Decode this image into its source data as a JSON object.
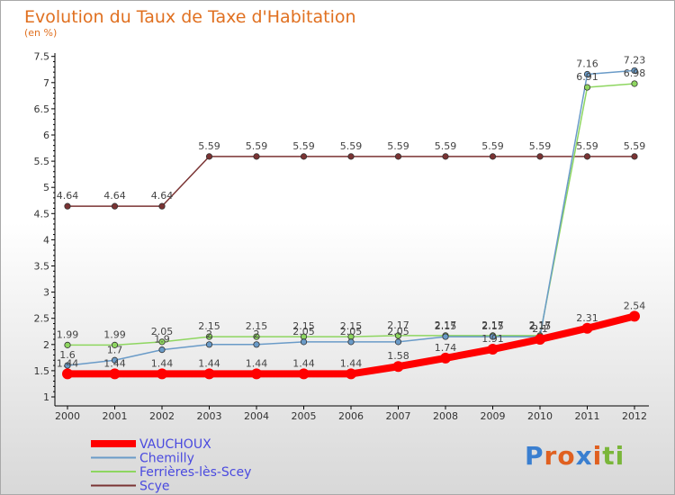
{
  "chart_data": {
    "type": "line",
    "title": "Evolution du Taux de Taxe d'Habitation",
    "subtitle": "(en %)",
    "x": [
      "2000",
      "2001",
      "2002",
      "2003",
      "2004",
      "2005",
      "2006",
      "2007",
      "2008",
      "2009",
      "2010",
      "2011",
      "2012"
    ],
    "ylim": [
      1,
      7.5
    ],
    "yticks": [
      "1",
      "1.5",
      "2",
      "2.5",
      "3",
      "3.5",
      "4",
      "4.5",
      "5",
      "5.5",
      "6",
      "6.5",
      "7",
      "7.5"
    ],
    "grid": false,
    "legend": "bottom-left",
    "series": [
      {
        "name": "VAUCHOUX",
        "color": "#ff0000",
        "values": [
          1.44,
          1.44,
          1.44,
          1.44,
          1.44,
          1.44,
          1.44,
          1.58,
          1.74,
          1.91,
          2.1,
          2.31,
          2.54
        ],
        "labels": [
          "1.44",
          "1.44",
          "1.44",
          "1.44",
          "1.44",
          "1.44",
          "1.44",
          "1.58",
          "1.74",
          "1.91",
          "2.1",
          "2.31",
          "2.54"
        ]
      },
      {
        "name": "Chemilly",
        "color": "#6a9bc8",
        "values": [
          1.6,
          1.7,
          1.9,
          2.0,
          2.0,
          2.05,
          2.05,
          2.05,
          2.15,
          2.15,
          2.15,
          7.16,
          7.23
        ],
        "labels": [
          "1.6",
          "1.7",
          "1.9",
          "2",
          "2",
          "2.05",
          "2.05",
          "2.05",
          "2.15",
          "2.15",
          "2.15",
          "7.16",
          "7.23"
        ]
      },
      {
        "name": "Ferrières-lès-Scey",
        "color": "#8ed660",
        "values": [
          1.99,
          1.99,
          2.05,
          2.15,
          2.15,
          2.15,
          2.15,
          2.17,
          2.17,
          2.17,
          2.17,
          6.91,
          6.98
        ],
        "labels": [
          "1.99",
          "1.99",
          "2.05",
          "2.15",
          "2.15",
          "2.15",
          "2.15",
          "2.17",
          "2.17",
          "2.17",
          "2.17",
          "6.91",
          "6.98"
        ]
      },
      {
        "name": "Scye",
        "color": "#7a3333",
        "values": [
          4.64,
          4.64,
          4.64,
          5.59,
          5.59,
          5.59,
          5.59,
          5.59,
          5.59,
          5.59,
          5.59,
          5.59,
          5.59
        ],
        "labels": [
          "4.64",
          "4.64",
          "4.64",
          "5.59",
          "5.59",
          "5.59",
          "5.59",
          "5.59",
          "5.59",
          "5.59",
          "5.59",
          "5.59",
          "5.59"
        ]
      }
    ]
  },
  "logo": {
    "letters": [
      "P",
      "r",
      "o",
      "x",
      "i",
      "t",
      "i"
    ],
    "colors": [
      "#3a7fd0",
      "#e06020",
      "#e06020",
      "#3a7fd0",
      "#e06020",
      "#7ab63a",
      "#7ab63a"
    ]
  }
}
